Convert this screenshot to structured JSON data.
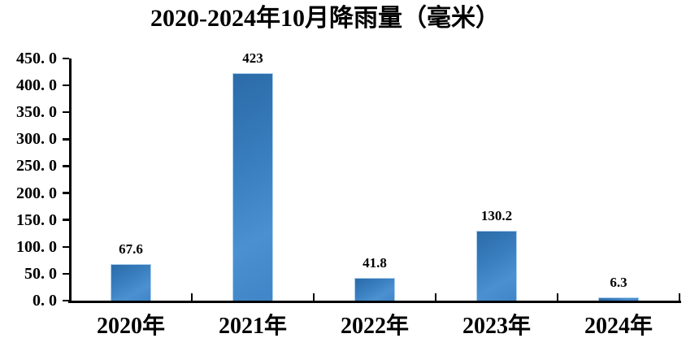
{
  "title": "2020-2024年10月降雨量（毫米）",
  "chart_data": {
    "type": "bar",
    "title": "2020-2024年10月降雨量（毫米）",
    "categories": [
      "2020年",
      "2021年",
      "2022年",
      "2023年",
      "2024年"
    ],
    "values": [
      67.6,
      423,
      41.8,
      130.2,
      6.3
    ],
    "value_labels": [
      "67.6",
      "423",
      "41.8",
      "130.2",
      "6.3"
    ],
    "xlabel": "",
    "ylabel": "",
    "ylim": [
      0,
      450
    ],
    "ytick_interval": 50,
    "ytick_labels": [
      "0. 0",
      "50. 0",
      "100. 0",
      "150. 0",
      "200. 0",
      "250. 0",
      "300. 0",
      "350. 0",
      "400. 0",
      "450. 0"
    ],
    "grid": false,
    "legend_position": "none",
    "bar_fill_dark": "#2b6ba8",
    "bar_fill_light": "#4b90d1",
    "bar_border_color": "#aecfec",
    "axis_color": "#000000",
    "text_color": "#000000",
    "background_color": "#ffffff"
  }
}
